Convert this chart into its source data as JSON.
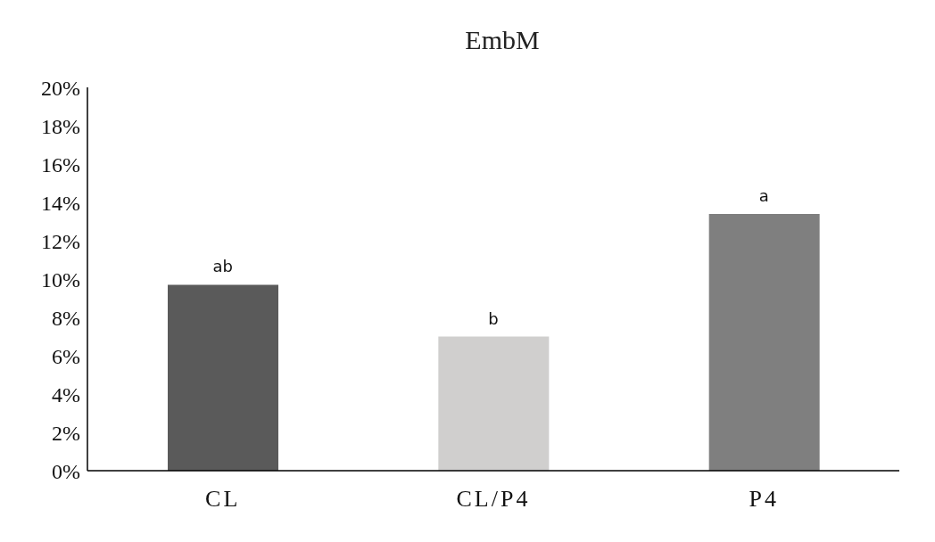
{
  "chart_data": {
    "type": "bar",
    "title": "EmbM",
    "categories": [
      "CL",
      "CL/P4",
      "P4"
    ],
    "values": [
      9.7,
      7.0,
      13.4
    ],
    "colors": [
      "#5a5a5a",
      "#d0cfce",
      "#7f7f7f"
    ],
    "ylim": [
      0,
      20
    ],
    "yticks": [
      {
        "value": 0,
        "label": "0%"
      },
      {
        "value": 2,
        "label": "2%"
      },
      {
        "value": 4,
        "label": "4%"
      },
      {
        "value": 6,
        "label": "6%"
      },
      {
        "value": 8,
        "label": "8%"
      },
      {
        "value": 10,
        "label": "10%"
      },
      {
        "value": 12,
        "label": "12%"
      },
      {
        "value": 14,
        "label": "14%"
      },
      {
        "value": 16,
        "label": "16%"
      },
      {
        "value": 18,
        "label": "18%"
      },
      {
        "value": 20,
        "label": "20%"
      }
    ],
    "grid": false,
    "annotations": [
      {
        "text": "ab",
        "x": "CL",
        "y": 9.7
      },
      {
        "text": "b",
        "x": "CL/P4",
        "y": 7.0
      },
      {
        "text": "a",
        "x": "P4",
        "y": 13.4
      }
    ]
  }
}
